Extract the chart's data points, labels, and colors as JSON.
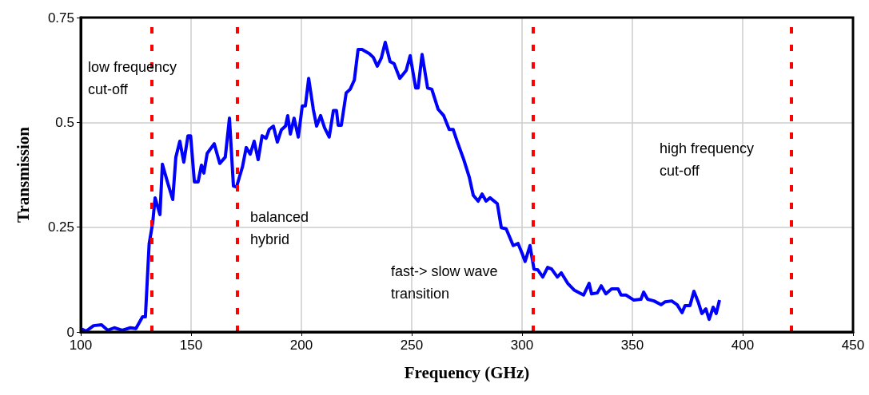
{
  "chart_data": {
    "type": "line",
    "xlabel": "Frequency (GHz)",
    "ylabel": "Transmission",
    "xlim": [
      100,
      450
    ],
    "xticks": [
      100,
      150,
      200,
      250,
      300,
      350,
      400,
      450
    ],
    "ylim": [
      0,
      0.75
    ],
    "yticks": [
      0,
      0.25,
      0.5,
      0.75
    ],
    "grid": true,
    "marker": "none",
    "line_style": "solid",
    "annotations": [
      "low frequency\ncut-off",
      "balanced\nhybrid",
      "fast-> slow wave\ntransition",
      "high frequency\ncut-off"
    ],
    "ref_lines": [
      {
        "axis": "x",
        "value": 132,
        "label": null,
        "color": "#ff0000",
        "line_style": "dashed"
      },
      {
        "axis": "x",
        "value": 171,
        "label": null,
        "color": "#ff0000",
        "line_style": "dashed"
      },
      {
        "axis": "x",
        "value": 305,
        "label": null,
        "color": "#ff0000",
        "line_style": "dashed"
      },
      {
        "axis": "x",
        "value": 422,
        "label": null,
        "color": "#ff0000",
        "line_style": "dashed"
      }
    ],
    "series": [
      {
        "color": "#0000ff",
        "x": [
          100,
          102.5,
          105.8,
          109.4,
          112.3,
          115.2,
          118.8,
          122.5,
          125,
          128,
          129.3,
          131,
          132.6,
          133.7,
          135.9,
          137,
          139.5,
          141.7,
          143.1,
          144.9,
          146.7,
          148.6,
          149.8,
          151.5,
          153.2,
          154.7,
          155.8,
          157.3,
          160.5,
          163,
          165.5,
          167.4,
          169.2,
          170.6,
          173.3,
          175,
          176.8,
          178.6,
          180.4,
          182.2,
          184,
          185.4,
          187.3,
          189.1,
          190.9,
          192.8,
          193.8,
          195,
          196.7,
          198.6,
          200.4,
          201.8,
          203.3,
          205.4,
          206.9,
          208.7,
          210.5,
          212.6,
          214.5,
          215.9,
          216.7,
          218.1,
          220.3,
          222.1,
          224,
          225.7,
          227.5,
          230.8,
          232.6,
          234.4,
          236.2,
          238,
          240.2,
          242,
          244.6,
          247.5,
          249.3,
          251.8,
          252.9,
          254.7,
          257.2,
          259.1,
          262,
          264.5,
          267,
          268.8,
          270.7,
          273.6,
          276.1,
          277.9,
          280.1,
          281.9,
          283.7,
          285.5,
          288.8,
          290.6,
          292.8,
          296,
          298.2,
          300,
          301.4,
          303.6,
          305.4,
          307.2,
          309.4,
          311.6,
          313.4,
          316,
          317.8,
          320.7,
          323.6,
          327.9,
          330.4,
          331.5,
          334.1,
          335.9,
          338,
          340.6,
          343.5,
          344.9,
          347.1,
          350.7,
          353.9,
          355.1,
          356.9,
          359.8,
          363,
          364.9,
          367.8,
          370.3,
          372.5,
          373.9,
          376.1,
          377.9,
          379.8,
          381.5,
          383.3,
          384.8,
          386.6,
          388,
          389.5
        ],
        "values": [
          0.008,
          0.002,
          0.015,
          0.017,
          0.004,
          0.01,
          0.004,
          0.01,
          0.008,
          0.036,
          0.036,
          0.21,
          0.26,
          0.32,
          0.28,
          0.4,
          0.354,
          0.316,
          0.417,
          0.455,
          0.405,
          0.468,
          0.468,
          0.358,
          0.358,
          0.398,
          0.379,
          0.426,
          0.449,
          0.402,
          0.417,
          0.51,
          0.348,
          0.346,
          0.394,
          0.44,
          0.424,
          0.455,
          0.411,
          0.468,
          0.462,
          0.483,
          0.491,
          0.453,
          0.482,
          0.491,
          0.516,
          0.472,
          0.51,
          0.465,
          0.539,
          0.539,
          0.605,
          0.531,
          0.491,
          0.516,
          0.487,
          0.465,
          0.528,
          0.528,
          0.493,
          0.493,
          0.57,
          0.579,
          0.601,
          0.674,
          0.674,
          0.664,
          0.655,
          0.634,
          0.653,
          0.691,
          0.645,
          0.64,
          0.605,
          0.624,
          0.659,
          0.582,
          0.582,
          0.662,
          0.582,
          0.579,
          0.531,
          0.516,
          0.483,
          0.483,
          0.453,
          0.411,
          0.369,
          0.326,
          0.312,
          0.329,
          0.312,
          0.32,
          0.306,
          0.249,
          0.246,
          0.206,
          0.211,
          0.188,
          0.168,
          0.206,
          0.15,
          0.148,
          0.131,
          0.154,
          0.15,
          0.131,
          0.141,
          0.116,
          0.1,
          0.088,
          0.116,
          0.091,
          0.093,
          0.11,
          0.091,
          0.103,
          0.103,
          0.088,
          0.088,
          0.076,
          0.078,
          0.095,
          0.078,
          0.074,
          0.065,
          0.072,
          0.074,
          0.065,
          0.046,
          0.063,
          0.063,
          0.097,
          0.072,
          0.044,
          0.055,
          0.03,
          0.059,
          0.044,
          0.076
        ]
      }
    ]
  }
}
